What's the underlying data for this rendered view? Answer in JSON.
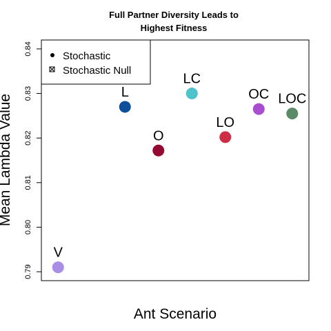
{
  "chart_data": {
    "type": "scatter",
    "title_line1": "Full Partner Diversity Leads to",
    "title_line2": "Highest Fitness",
    "xlabel": "Ant Scenario",
    "ylabel": "Mean Lambda Value",
    "ylim": [
      0.788,
      0.842
    ],
    "xlim": [
      0.5,
      8.5
    ],
    "y_ticks": [
      0.79,
      0.8,
      0.81,
      0.82,
      0.83,
      0.84
    ],
    "y_tick_labels": [
      "0.79",
      "0.80",
      "0.81",
      "0.82",
      "0.83",
      "0.84"
    ],
    "grid": false,
    "legend": {
      "placement": "top-left",
      "entries": [
        {
          "label": "Stochastic",
          "symbol": "filled-dot"
        },
        {
          "label": "Stochastic Null",
          "symbol": "crossed-square"
        }
      ]
    },
    "points": [
      {
        "label": "V",
        "x": 1,
        "y": 0.791,
        "color": "#a98de6"
      },
      {
        "label": "L",
        "x": 3,
        "y": 0.827,
        "color": "#0d4f9a"
      },
      {
        "label": "O",
        "x": 4,
        "y": 0.8172,
        "color": "#940a33"
      },
      {
        "label": "LC",
        "x": 5,
        "y": 0.83,
        "color": "#4ec3cc"
      },
      {
        "label": "LO",
        "x": 6,
        "y": 0.8202,
        "color": "#cc2e46"
      },
      {
        "label": "OC",
        "x": 7,
        "y": 0.8265,
        "color": "#a94ed0"
      },
      {
        "label": "LOC",
        "x": 8,
        "y": 0.8255,
        "color": "#5b8a67"
      }
    ]
  }
}
